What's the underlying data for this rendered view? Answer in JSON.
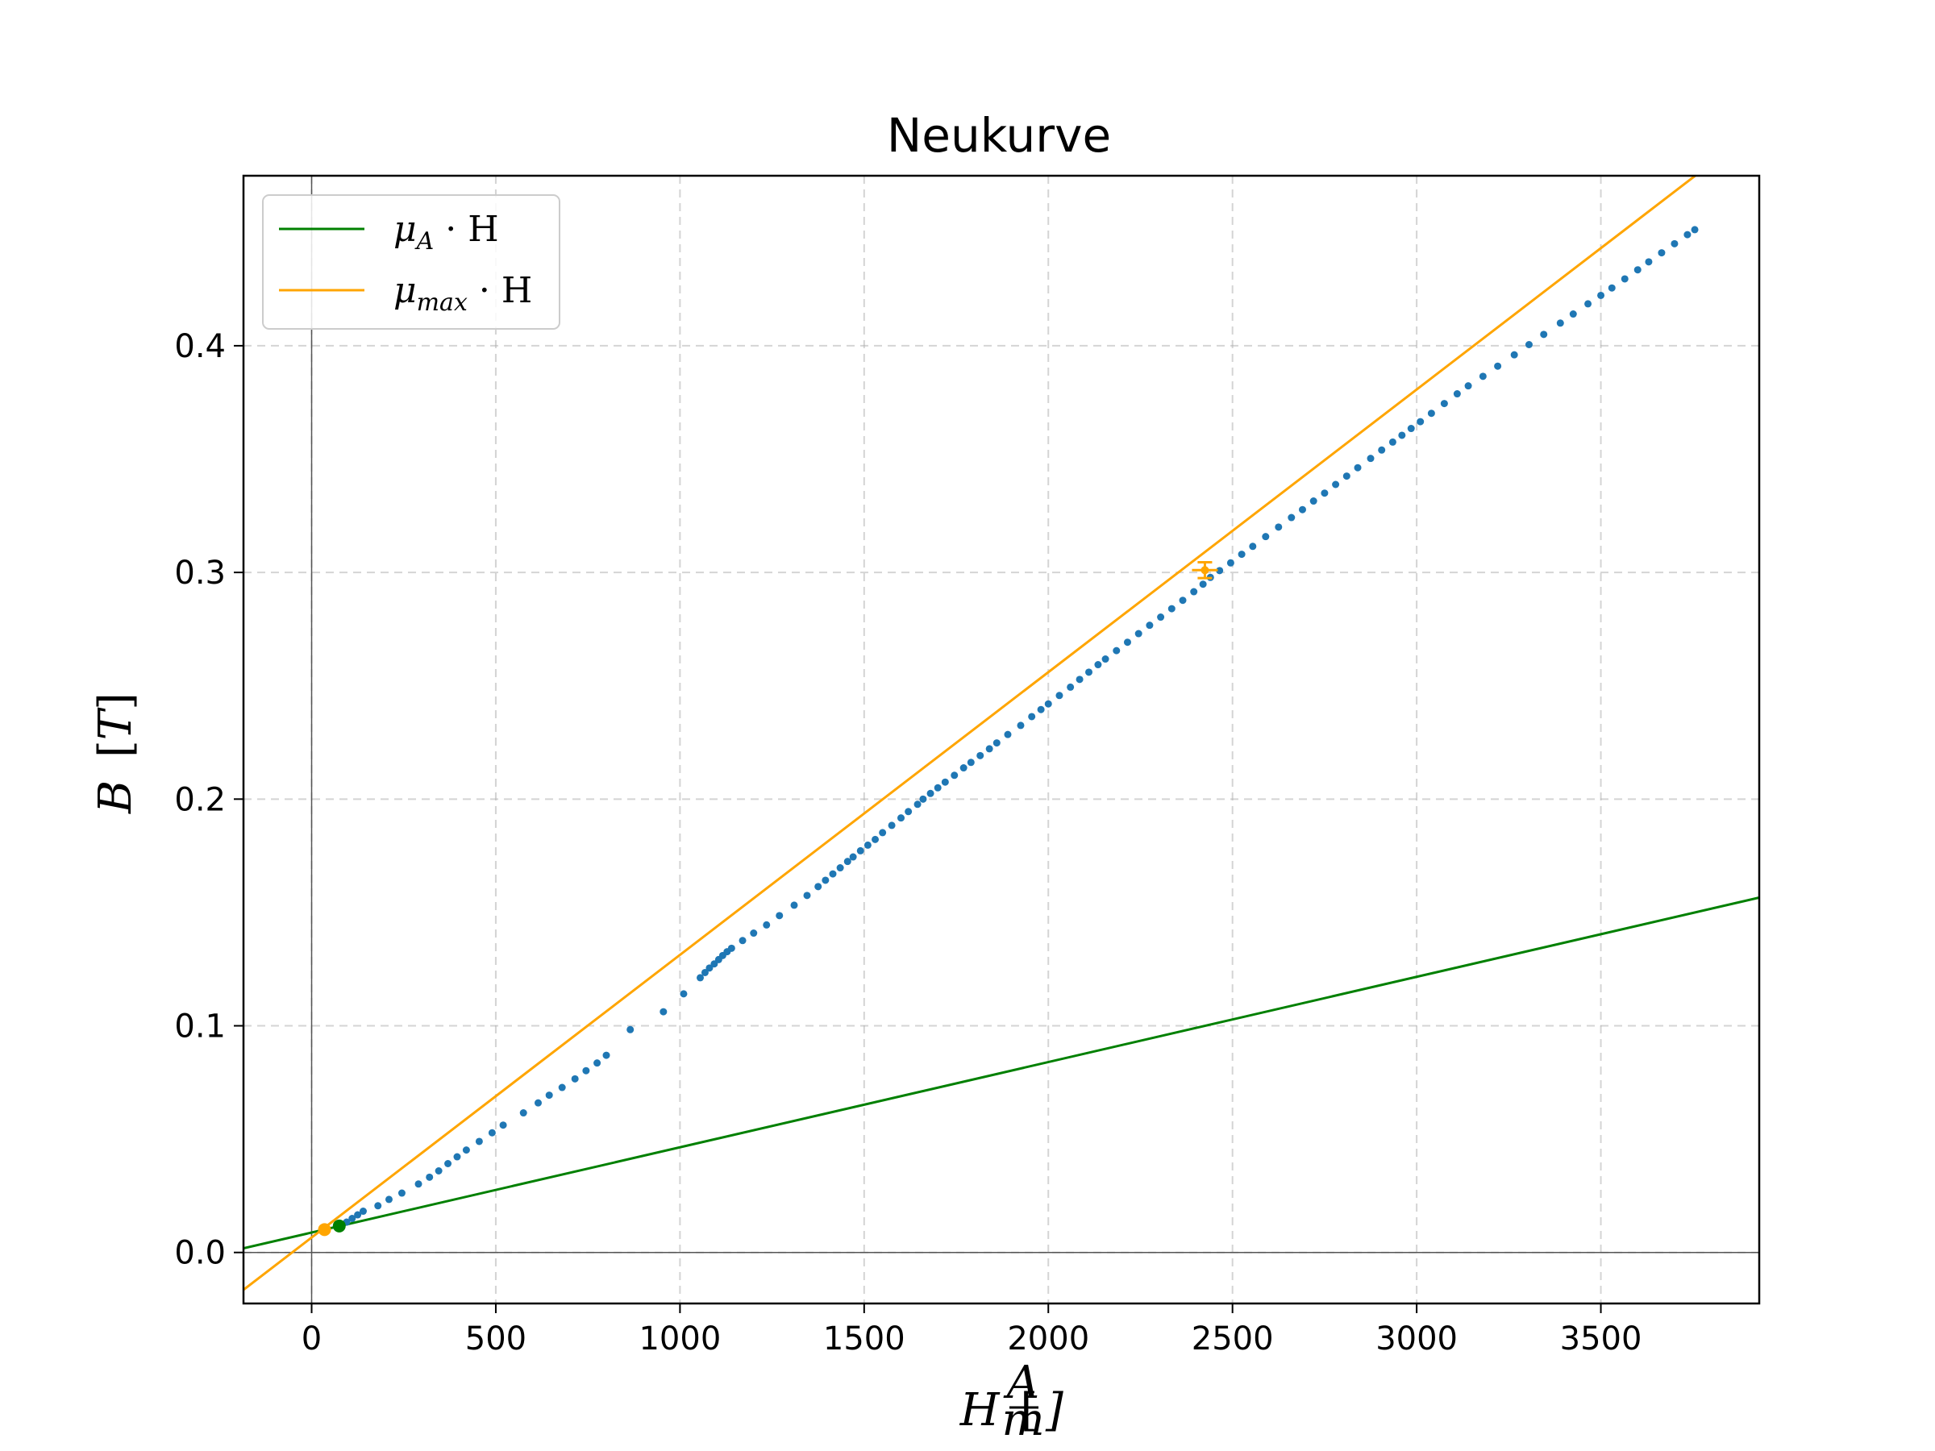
{
  "chart_data": {
    "type": "scatter",
    "title": "Neukurve",
    "xlabel": {
      "var": "H",
      "unit_num": "A",
      "unit_den": "m"
    },
    "ylabel": {
      "var": "B",
      "unit": "T"
    },
    "xlim": [
      -185,
      3930
    ],
    "ylim": [
      -0.0225,
      0.475
    ],
    "xticks": [
      0,
      500,
      1000,
      1500,
      2000,
      2500,
      3000,
      3500
    ],
    "yticks": [
      0.0,
      0.1,
      0.2,
      0.3,
      0.4
    ],
    "xtick_labels": [
      "0",
      "500",
      "1000",
      "1500",
      "2000",
      "2500",
      "3000",
      "3500"
    ],
    "ytick_labels": [
      "0.0",
      "0.1",
      "0.2",
      "0.3",
      "0.4"
    ],
    "grid": true,
    "legend_position": "top-left",
    "lines": [
      {
        "name_main": "μ",
        "name_sub": "A",
        "name_rest": " · H",
        "color": "#008000",
        "slope": 3.76e-05,
        "intercept": 0.0088
      },
      {
        "name_main": "μ",
        "name_sub": "max",
        "name_rest": " · H",
        "color": "#ffa500",
        "slope": 0.0001247,
        "intercept": 0.0066
      }
    ],
    "markers": [
      {
        "x": 35,
        "y": 0.0101,
        "color": "#ffa500"
      },
      {
        "x": 75,
        "y": 0.0117,
        "color": "#008000"
      }
    ],
    "errorbar": {
      "x": 2425,
      "y": 0.301,
      "xerr": 35,
      "yerr": 0.0035,
      "color": "#ffa500"
    },
    "scatter_color": "#1f77b4",
    "scatter": [
      [
        80,
        0.0117
      ],
      [
        95,
        0.0134
      ],
      [
        110,
        0.015
      ],
      [
        125,
        0.0166
      ],
      [
        140,
        0.0182
      ],
      [
        180,
        0.0206
      ],
      [
        210,
        0.0234
      ],
      [
        245,
        0.0262
      ],
      [
        290,
        0.0302
      ],
      [
        320,
        0.0332
      ],
      [
        345,
        0.036
      ],
      [
        370,
        0.0392
      ],
      [
        395,
        0.0422
      ],
      [
        420,
        0.0452
      ],
      [
        455,
        0.049
      ],
      [
        490,
        0.0528
      ],
      [
        520,
        0.0562
      ],
      [
        575,
        0.0616
      ],
      [
        615,
        0.066
      ],
      [
        645,
        0.0694
      ],
      [
        680,
        0.0728
      ],
      [
        715,
        0.0766
      ],
      [
        745,
        0.0802
      ],
      [
        775,
        0.0836
      ],
      [
        800,
        0.087
      ],
      [
        865,
        0.0983
      ],
      [
        955,
        0.1062
      ],
      [
        1010,
        0.1141
      ],
      [
        1055,
        0.1212
      ],
      [
        1068,
        0.1235
      ],
      [
        1080,
        0.1255
      ],
      [
        1093,
        0.1273
      ],
      [
        1105,
        0.1292
      ],
      [
        1116,
        0.131
      ],
      [
        1128,
        0.1327
      ],
      [
        1140,
        0.1342
      ],
      [
        1170,
        0.1376
      ],
      [
        1200,
        0.1409
      ],
      [
        1235,
        0.1445
      ],
      [
        1270,
        0.1486
      ],
      [
        1310,
        0.1532
      ],
      [
        1345,
        0.1575
      ],
      [
        1375,
        0.1614
      ],
      [
        1395,
        0.1642
      ],
      [
        1415,
        0.167
      ],
      [
        1435,
        0.1697
      ],
      [
        1455,
        0.1725
      ],
      [
        1470,
        0.1745
      ],
      [
        1490,
        0.1772
      ],
      [
        1510,
        0.1797
      ],
      [
        1530,
        0.1822
      ],
      [
        1550,
        0.1852
      ],
      [
        1575,
        0.1884
      ],
      [
        1600,
        0.1917
      ],
      [
        1620,
        0.1945
      ],
      [
        1645,
        0.1977
      ],
      [
        1660,
        0.2
      ],
      [
        1680,
        0.2025
      ],
      [
        1700,
        0.205
      ],
      [
        1720,
        0.2075
      ],
      [
        1745,
        0.2105
      ],
      [
        1770,
        0.2138
      ],
      [
        1790,
        0.2162
      ],
      [
        1815,
        0.2192
      ],
      [
        1840,
        0.2222
      ],
      [
        1860,
        0.2248
      ],
      [
        1890,
        0.2285
      ],
      [
        1925,
        0.2325
      ],
      [
        1955,
        0.2364
      ],
      [
        1980,
        0.2395
      ],
      [
        2000,
        0.242
      ],
      [
        2030,
        0.2457
      ],
      [
        2060,
        0.2494
      ],
      [
        2085,
        0.2528
      ],
      [
        2110,
        0.256
      ],
      [
        2135,
        0.2593
      ],
      [
        2155,
        0.2618
      ],
      [
        2185,
        0.2655
      ],
      [
        2215,
        0.2692
      ],
      [
        2245,
        0.273
      ],
      [
        2275,
        0.2767
      ],
      [
        2305,
        0.2803
      ],
      [
        2335,
        0.284
      ],
      [
        2365,
        0.2877
      ],
      [
        2395,
        0.2915
      ],
      [
        2420,
        0.2948
      ],
      [
        2440,
        0.2978
      ],
      [
        2465,
        0.3008
      ],
      [
        2495,
        0.3042
      ],
      [
        2525,
        0.308
      ],
      [
        2555,
        0.3115
      ],
      [
        2590,
        0.3158
      ],
      [
        2625,
        0.32
      ],
      [
        2660,
        0.3242
      ],
      [
        2690,
        0.3277
      ],
      [
        2720,
        0.3315
      ],
      [
        2750,
        0.335
      ],
      [
        2780,
        0.3388
      ],
      [
        2810,
        0.3425
      ],
      [
        2840,
        0.3462
      ],
      [
        2875,
        0.3503
      ],
      [
        2905,
        0.354
      ],
      [
        2935,
        0.3575
      ],
      [
        2960,
        0.3605
      ],
      [
        2985,
        0.3635
      ],
      [
        3010,
        0.3665
      ],
      [
        3040,
        0.3702
      ],
      [
        3075,
        0.3745
      ],
      [
        3110,
        0.3788
      ],
      [
        3140,
        0.3823
      ],
      [
        3180,
        0.3865
      ],
      [
        3220,
        0.391
      ],
      [
        3265,
        0.396
      ],
      [
        3305,
        0.4005
      ],
      [
        3345,
        0.405
      ],
      [
        3390,
        0.41
      ],
      [
        3425,
        0.414
      ],
      [
        3465,
        0.4185
      ],
      [
        3500,
        0.4222
      ],
      [
        3530,
        0.4255
      ],
      [
        3565,
        0.4295
      ],
      [
        3600,
        0.4335
      ],
      [
        3630,
        0.437
      ],
      [
        3665,
        0.441
      ],
      [
        3700,
        0.445
      ],
      [
        3735,
        0.449
      ],
      [
        3755,
        0.4512
      ]
    ]
  }
}
